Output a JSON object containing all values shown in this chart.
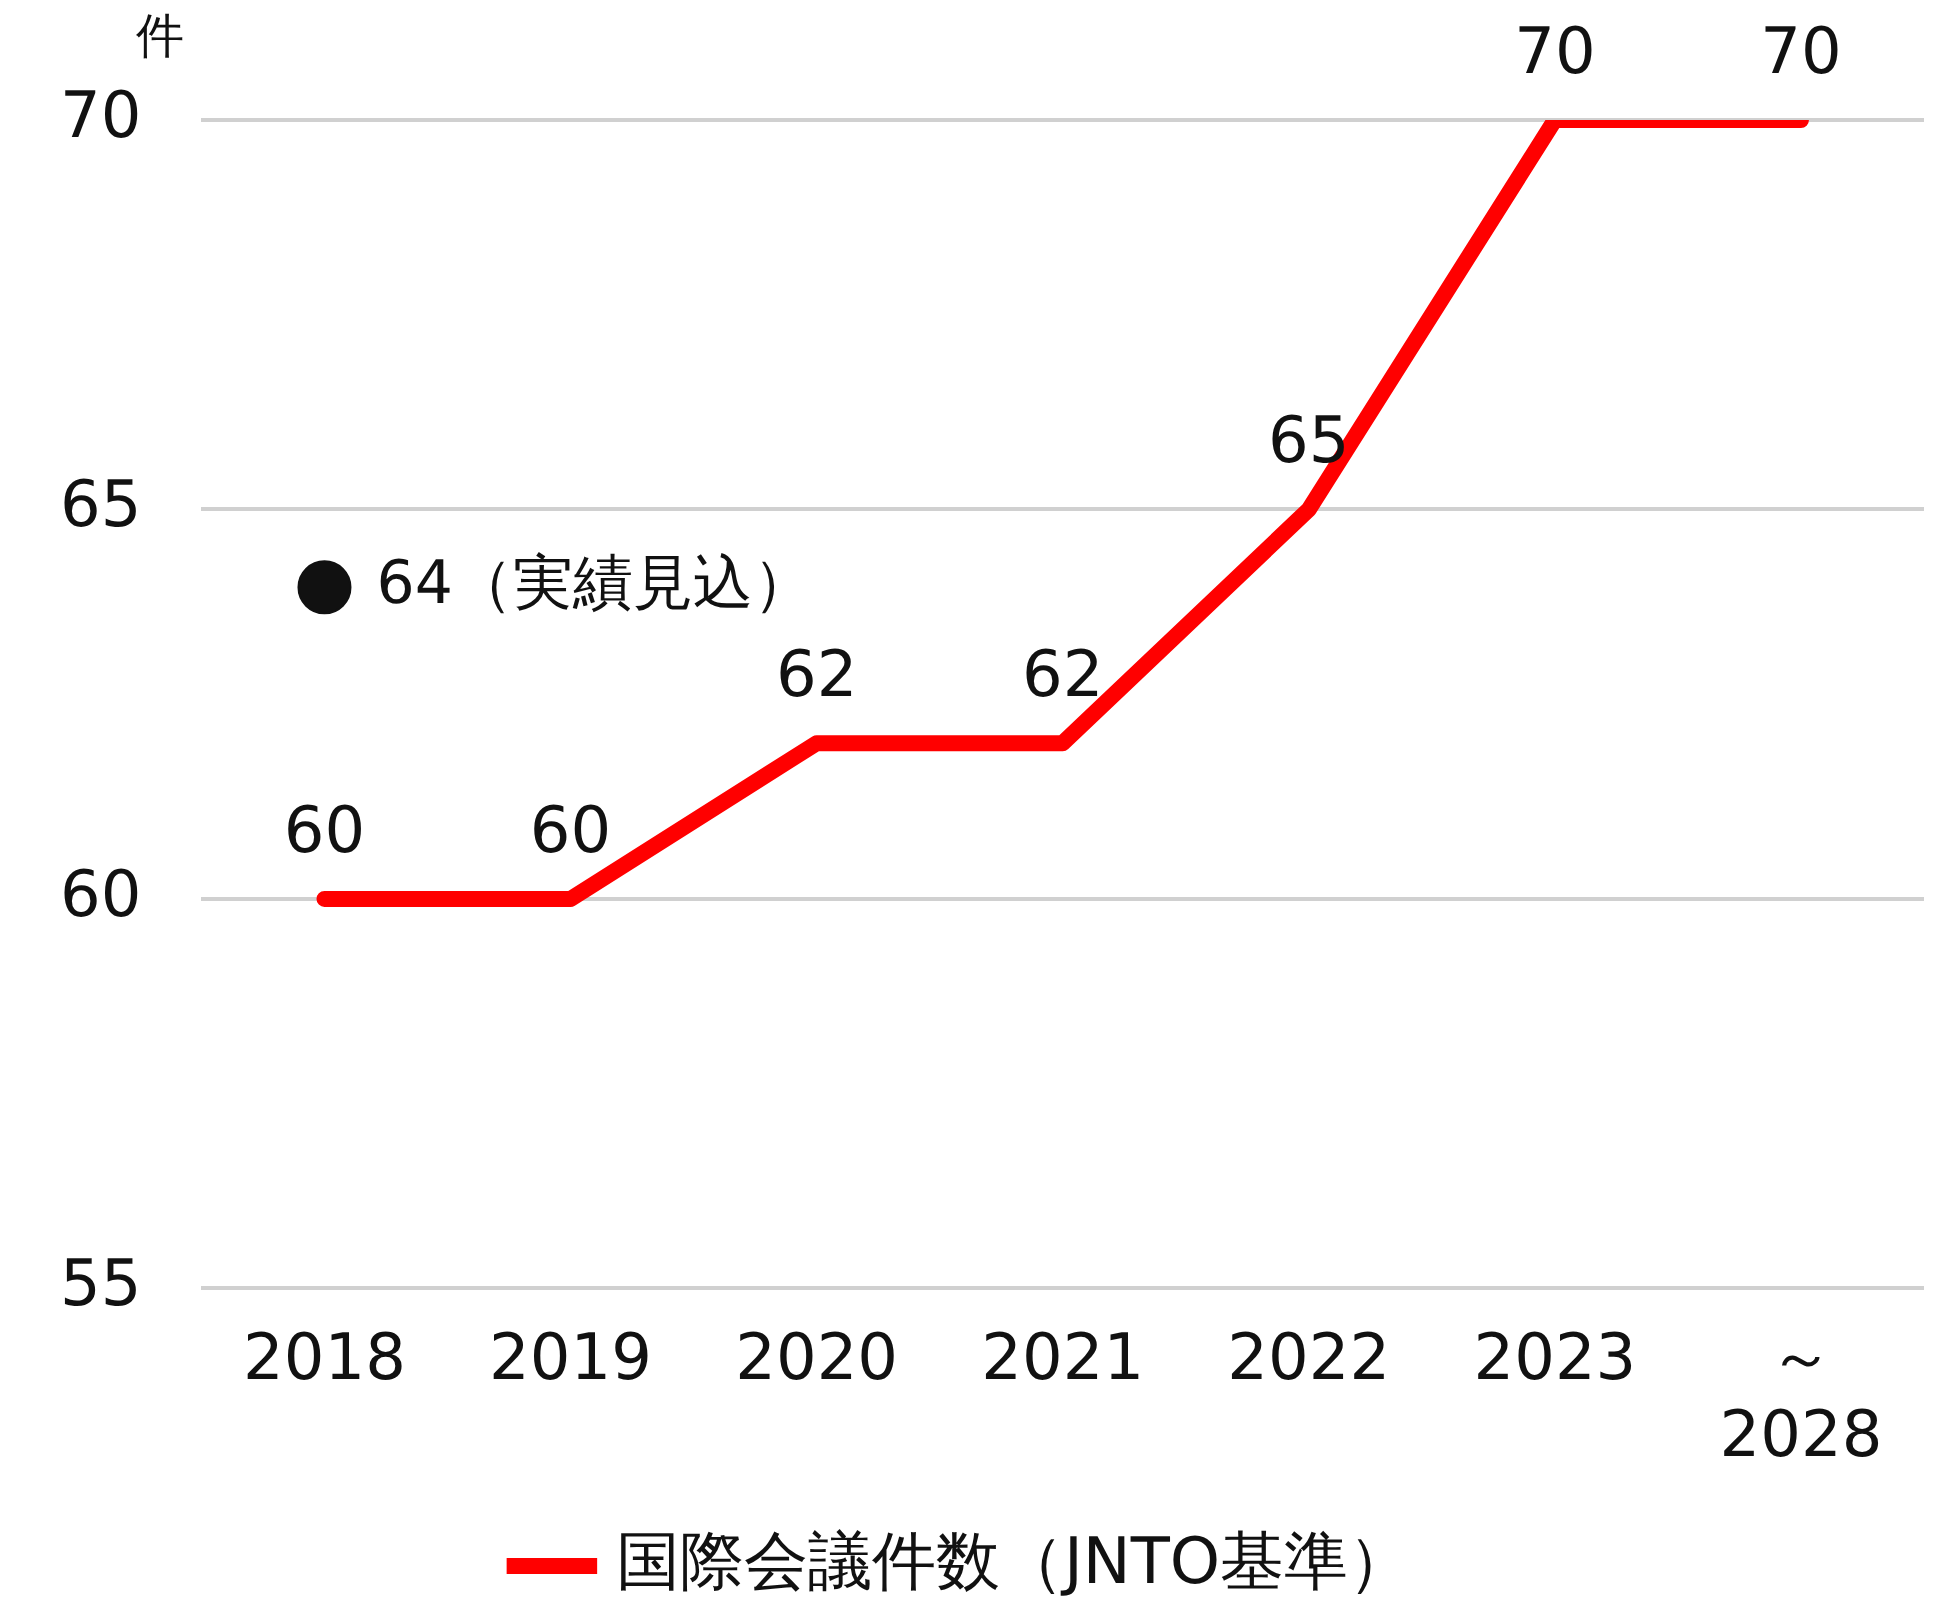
{
  "chart_data": {
    "type": "line",
    "ylabel": "件",
    "categories": [
      "2018",
      "2019",
      "2020",
      "2021",
      "2022",
      "2023",
      "～\n2028"
    ],
    "series": [
      {
        "name": "国際会議件数（JNTO基準）",
        "color": "#ff0000",
        "values": [
          60,
          60,
          62,
          62,
          65,
          70,
          70
        ]
      },
      {
        "type": "scatter",
        "color": "#111111",
        "values": [
          64,
          null,
          null,
          null,
          null,
          null,
          null
        ],
        "value_labels": [
          "64（実績見込）",
          null,
          null,
          null,
          null,
          null,
          null
        ],
        "marker": "circle"
      }
    ],
    "ylim": [
      55,
      70
    ],
    "yticks": [
      55,
      60,
      65,
      70
    ],
    "grid": "y",
    "legend": "bottom",
    "data_labels": true,
    "marker": "none",
    "line_style": "solid"
  }
}
